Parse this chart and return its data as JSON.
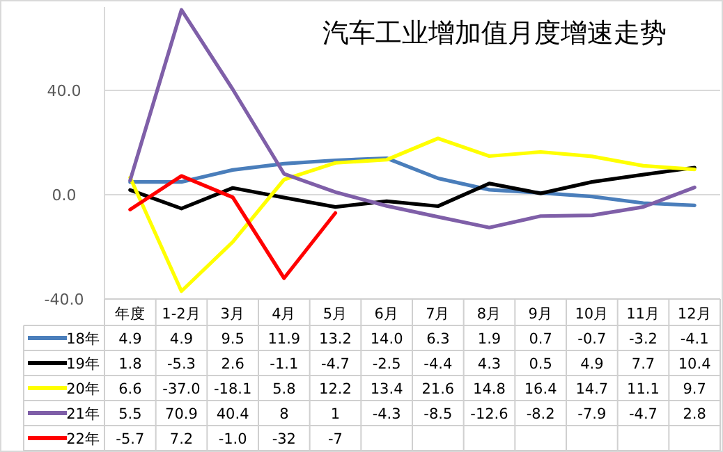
{
  "chart_data": {
    "type": "line",
    "title": "汽车工业增加值月度增速走势",
    "categories": [
      "年度",
      "1-2月",
      "3月",
      "4月",
      "5月",
      "6月",
      "7月",
      "8月",
      "9月",
      "10月",
      "11月",
      "12月"
    ],
    "ylim": [
      -40,
      72
    ],
    "yticks": [
      {
        "value": 40,
        "label": "40.0"
      },
      {
        "value": 0,
        "label": "0.0"
      },
      {
        "value": -40,
        "label": "-40.0"
      }
    ],
    "grid": "y",
    "legend": "bottom",
    "series": [
      {
        "name": "18年",
        "color": "#4a7ebb",
        "values": [
          4.9,
          4.9,
          9.5,
          11.9,
          13.2,
          14.0,
          6.3,
          1.9,
          0.7,
          -0.7,
          -3.2,
          -4.1
        ],
        "value_labels": [
          "4.9",
          "4.9",
          "9.5",
          "11.9",
          "13.2",
          "14.0",
          "6.3",
          "1.9",
          "0.7",
          "-0.7",
          "-3.2",
          "-4.1"
        ]
      },
      {
        "name": "19年",
        "color": "#000000",
        "values": [
          1.8,
          -5.3,
          2.6,
          -1.1,
          -4.7,
          -2.5,
          -4.4,
          4.3,
          0.5,
          4.9,
          7.7,
          10.4
        ],
        "value_labels": [
          "1.8",
          "-5.3",
          "2.6",
          "-1.1",
          "-4.7",
          "-2.5",
          "-4.4",
          "4.3",
          "0.5",
          "4.9",
          "7.7",
          "10.4"
        ]
      },
      {
        "name": "20年",
        "color": "#ffff00",
        "values": [
          6.6,
          -37.0,
          -18.1,
          5.8,
          12.2,
          13.4,
          21.6,
          14.8,
          16.4,
          14.7,
          11.1,
          9.7
        ],
        "value_labels": [
          "6.6",
          "-37.0",
          "-18.1",
          "5.8",
          "12.2",
          "13.4",
          "21.6",
          "14.8",
          "16.4",
          "14.7",
          "11.1",
          "9.7"
        ]
      },
      {
        "name": "21年",
        "color": "#7f5fa8",
        "values": [
          5.5,
          70.9,
          40.4,
          8,
          1,
          -4.3,
          -8.5,
          -12.6,
          -8.2,
          -7.9,
          -4.7,
          2.8
        ],
        "value_labels": [
          "5.5",
          "70.9",
          "40.4",
          "8",
          "1",
          "-4.3",
          "-8.5",
          "-12.6",
          "-8.2",
          "-7.9",
          "-4.7",
          "2.8"
        ]
      },
      {
        "name": "22年",
        "color": "#ff0000",
        "values": [
          -5.7,
          7.2,
          -1.0,
          -32,
          -7,
          null,
          null,
          null,
          null,
          null,
          null,
          null
        ],
        "value_labels": [
          "-5.7",
          "7.2",
          "-1.0",
          "-32",
          "-7",
          null,
          null,
          null,
          null,
          null,
          null,
          null
        ]
      }
    ]
  }
}
